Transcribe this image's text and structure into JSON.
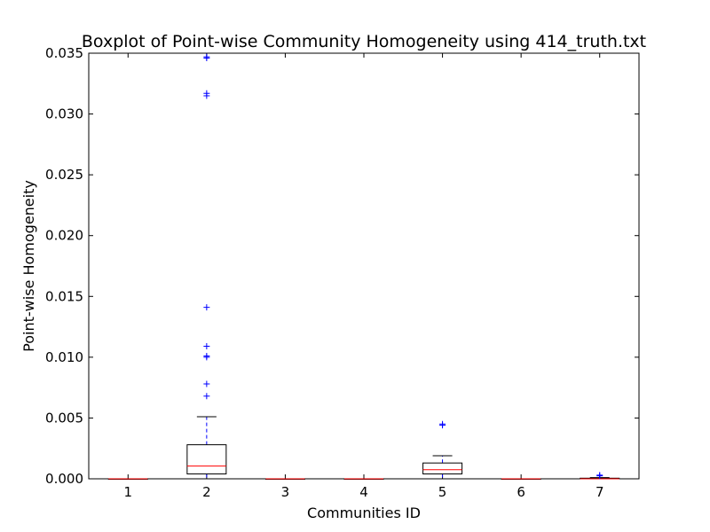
{
  "chart_data": {
    "type": "boxplot",
    "title": "Boxplot of Point-wise Community Homogeneity using 414_truth.txt",
    "xlabel": "Communities ID",
    "ylabel": "Point-wise Homogeneity",
    "ylim": [
      0,
      0.035
    ],
    "yticks": [
      "0.000",
      "0.005",
      "0.010",
      "0.015",
      "0.020",
      "0.025",
      "0.030",
      "0.035"
    ],
    "grid": false,
    "colors": {
      "box": "#000000",
      "median": "#ff0000",
      "whisker": "#0000ff",
      "flier": "#0000ff"
    },
    "categories": [
      "1",
      "2",
      "3",
      "4",
      "5",
      "6",
      "7"
    ],
    "boxes": [
      {
        "id": "1",
        "whislo": 0.0,
        "q1": 0.0,
        "med": 0.0,
        "q3": 0.0,
        "whishi": 0.0,
        "fliers": []
      },
      {
        "id": "2",
        "whislo": 0.0,
        "q1": 0.0004,
        "med": 0.00105,
        "q3": 0.0028,
        "whishi": 0.0051,
        "fliers": [
          0.0347,
          0.0346,
          0.0317,
          0.0315,
          0.0141,
          0.0109,
          0.0101,
          0.01,
          0.0078,
          0.0068
        ]
      },
      {
        "id": "3",
        "whislo": 0.0,
        "q1": 0.0,
        "med": 0.0,
        "q3": 0.0,
        "whishi": 0.0,
        "fliers": []
      },
      {
        "id": "4",
        "whislo": 0.0,
        "q1": 0.0,
        "med": 0.0,
        "q3": 0.0,
        "whishi": 0.0,
        "fliers": []
      },
      {
        "id": "5",
        "whislo": 0.0,
        "q1": 0.0004,
        "med": 0.00075,
        "q3": 0.0013,
        "whishi": 0.0019,
        "fliers": [
          0.0045,
          0.0044
        ]
      },
      {
        "id": "6",
        "whislo": 0.0,
        "q1": 0.0,
        "med": 0.0,
        "q3": 0.0,
        "whishi": 0.0,
        "fliers": []
      },
      {
        "id": "7",
        "whislo": 0.0,
        "q1": 0.0,
        "med": 0.0,
        "q3": 5e-05,
        "whishi": 0.0001,
        "fliers": [
          0.0003,
          0.00025
        ]
      }
    ]
  }
}
